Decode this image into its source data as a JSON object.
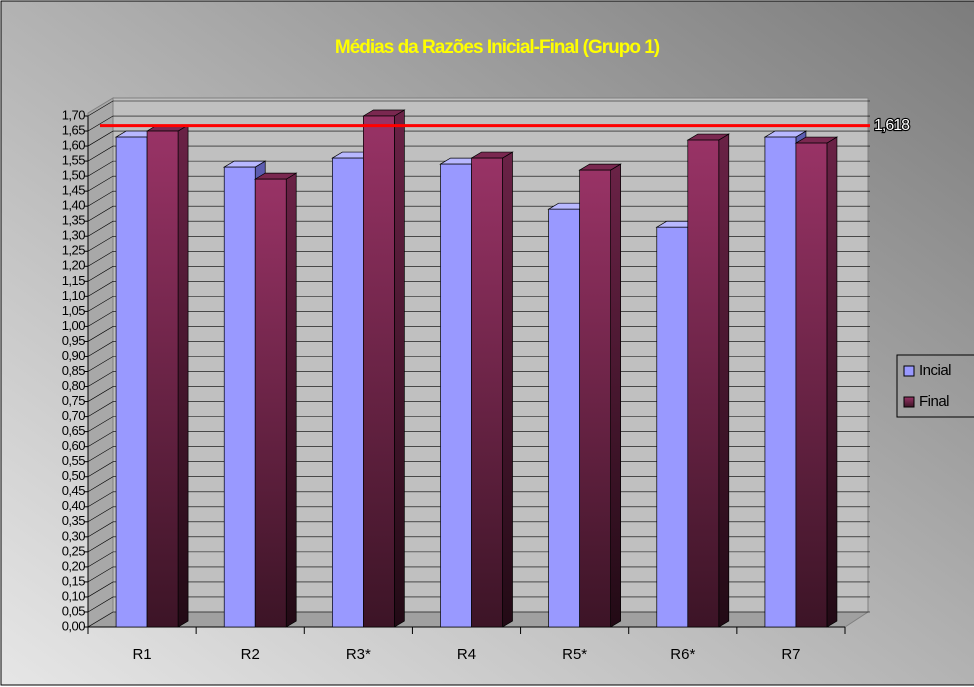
{
  "chart_data": {
    "type": "bar3d",
    "title": "Médias da Razões Inicial-Final (Grupo 1)",
    "categories": [
      "R1",
      "R2",
      "R3*",
      "R4",
      "R5*",
      "R6*",
      "R7"
    ],
    "series": [
      {
        "name": "Incial",
        "color": "#9999ff",
        "values": [
          1.63,
          1.53,
          1.56,
          1.54,
          1.39,
          1.33,
          1.63
        ]
      },
      {
        "name": "Final",
        "color": "#993366",
        "values": [
          1.65,
          1.49,
          1.7,
          1.56,
          1.52,
          1.62,
          1.61
        ]
      }
    ],
    "reference_line": {
      "value": 1.618,
      "label": "1,618",
      "color": "#ff0000"
    },
    "ylim": [
      0,
      1.7
    ],
    "yticks": [
      {
        "value": 0,
        "label": "0,00"
      },
      {
        "value": 0.05,
        "label": "0,05"
      },
      {
        "value": 0.1,
        "label": "0,10"
      },
      {
        "value": 0.15,
        "label": "0,15"
      },
      {
        "value": 0.2,
        "label": "0,20"
      },
      {
        "value": 0.25,
        "label": "0,25"
      },
      {
        "value": 0.3,
        "label": "0,30"
      },
      {
        "value": 0.35,
        "label": "0,35"
      },
      {
        "value": 0.4,
        "label": "0,40"
      },
      {
        "value": 0.45,
        "label": "0,45"
      },
      {
        "value": 0.5,
        "label": "0,50"
      },
      {
        "value": 0.55,
        "label": "0,55"
      },
      {
        "value": 0.6,
        "label": "0,60"
      },
      {
        "value": 0.65,
        "label": "0,65"
      },
      {
        "value": 0.7,
        "label": "0,70"
      },
      {
        "value": 0.75,
        "label": "0,75"
      },
      {
        "value": 0.8,
        "label": "0,80"
      },
      {
        "value": 0.85,
        "label": "0,85"
      },
      {
        "value": 0.9,
        "label": "0,90"
      },
      {
        "value": 0.95,
        "label": "0,95"
      },
      {
        "value": 1.0,
        "label": "1,00"
      },
      {
        "value": 1.05,
        "label": "1,05"
      },
      {
        "value": 1.1,
        "label": "1,10"
      },
      {
        "value": 1.15,
        "label": "1,15"
      },
      {
        "value": 1.2,
        "label": "1,20"
      },
      {
        "value": 1.25,
        "label": "1,25"
      },
      {
        "value": 1.3,
        "label": "1,30"
      },
      {
        "value": 1.35,
        "label": "1,35"
      },
      {
        "value": 1.4,
        "label": "1,40"
      },
      {
        "value": 1.45,
        "label": "1,45"
      },
      {
        "value": 1.5,
        "label": "1,50"
      },
      {
        "value": 1.55,
        "label": "1,55"
      },
      {
        "value": 1.6,
        "label": "1,60"
      },
      {
        "value": 1.65,
        "label": "1,65"
      },
      {
        "value": 1.7,
        "label": "1,70"
      }
    ],
    "grid": true,
    "legend": "right"
  }
}
